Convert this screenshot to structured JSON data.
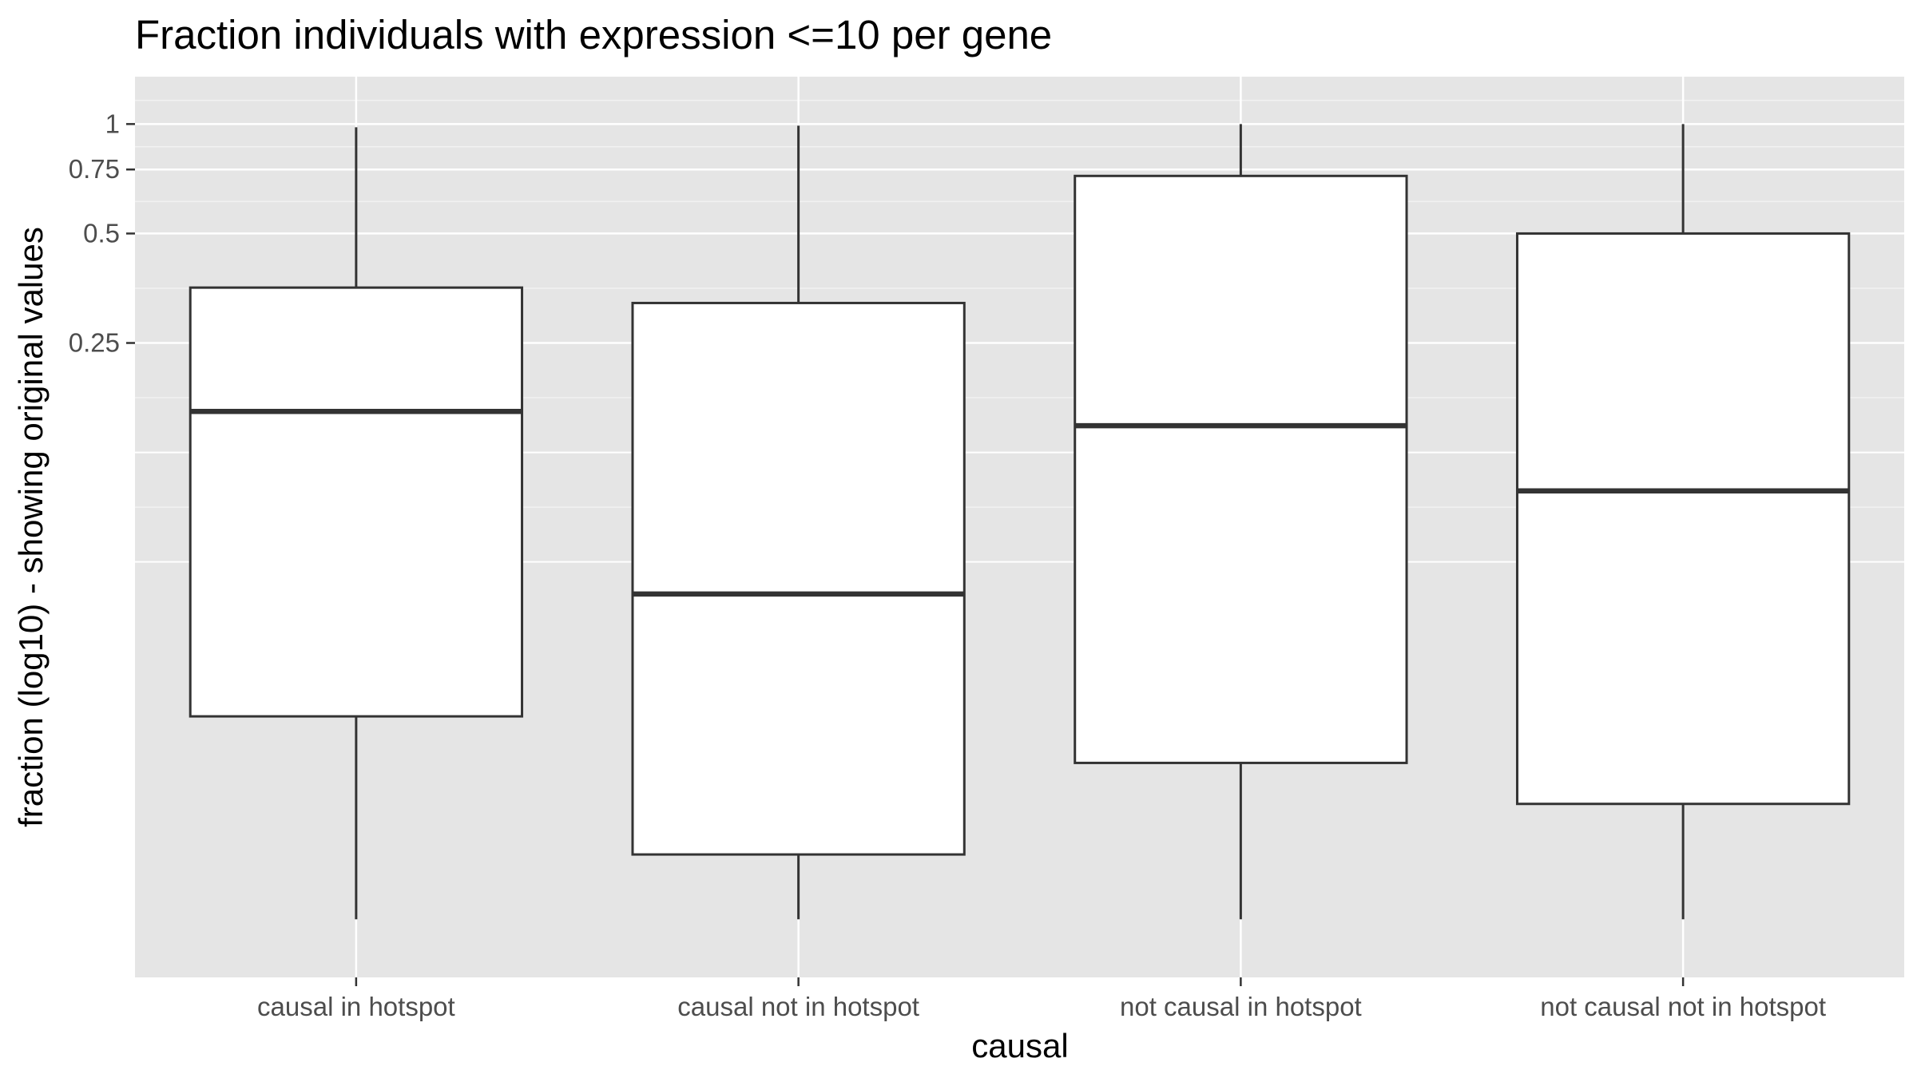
{
  "chart_data": {
    "type": "boxplot",
    "title": "Fraction individuals with expression <=10 per gene",
    "xlabel": "causal",
    "ylabel": "fraction (log10) - showing original values",
    "y_scale": "log10",
    "ylim": [
      0.0045,
      1.35
    ],
    "y_ticks": [
      0.25,
      0.5,
      0.75,
      1
    ],
    "y_tick_labels": [
      "0.25",
      "0.5",
      "0.75",
      "1"
    ],
    "y_minor_gridlines": [
      0.0625,
      0.125
    ],
    "grid": true,
    "background_color": "#e5e5e5",
    "categories": [
      "causal in hotspot",
      "causal not in hotspot",
      "not causal in hotspot",
      "not causal not in hotspot"
    ],
    "boxes": [
      {
        "category": "causal in hotspot",
        "whisker_low": 0.0065,
        "q1": 0.0235,
        "median": 0.162,
        "q3": 0.355,
        "whisker_high": 0.98
      },
      {
        "category": "causal not in hotspot",
        "whisker_low": 0.0065,
        "q1": 0.0098,
        "median": 0.051,
        "q3": 0.322,
        "whisker_high": 0.99
      },
      {
        "category": "not causal in hotspot",
        "whisker_low": 0.0065,
        "q1": 0.0175,
        "median": 0.148,
        "q3": 0.72,
        "whisker_high": 1.0
      },
      {
        "category": "not causal not in hotspot",
        "whisker_low": 0.0065,
        "q1": 0.0135,
        "median": 0.098,
        "q3": 0.5,
        "whisker_high": 1.0
      }
    ]
  }
}
